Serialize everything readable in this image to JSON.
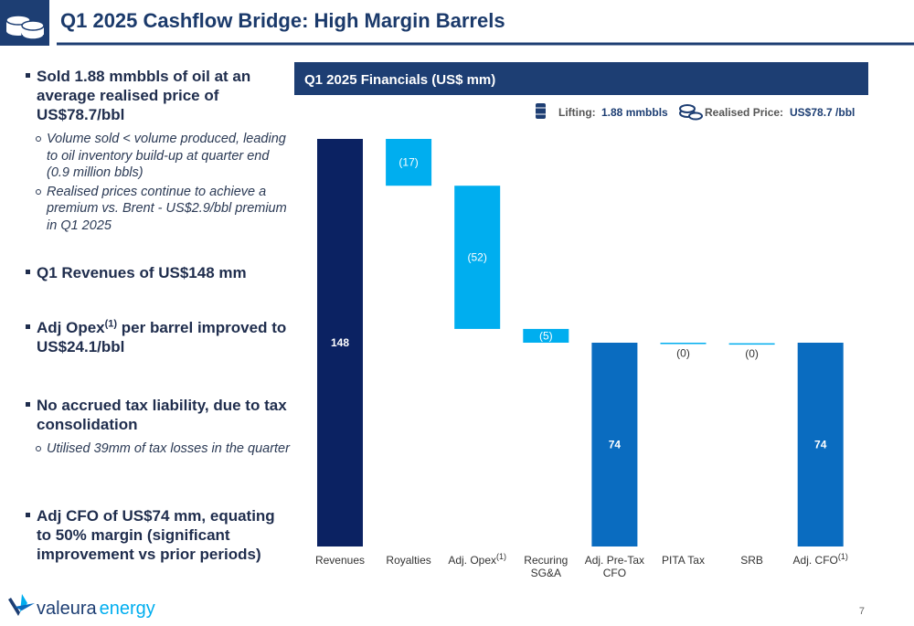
{
  "header": {
    "title": "Q1 2025 Cashflow Bridge: High Margin Barrels"
  },
  "bullets": [
    {
      "text": "Sold 1.88 mmbbls of oil at an average realised price of US$78.7/bbl",
      "subs": [
        "Volume sold <  volume produced, leading to oil inventory build-up at quarter end (0.9 million bbls)",
        "Realised prices continue to achieve a premium vs. Brent -  US$2.9/bbl premium in Q1 2025"
      ]
    },
    {
      "text": "Q1 Revenues of US$148 mm"
    },
    {
      "text": "Adj Opex",
      "sup": "(1)",
      "after": " per barrel improved to US$24.1/bbl"
    },
    {
      "text": "No accrued  tax liability, due to tax consolidation",
      "subs": [
        "Utilised 39mm of tax losses in the quarter"
      ]
    },
    {
      "text": "Adj CFO of US$74 mm,  equating to 50% margin (significant improvement vs prior periods)"
    }
  ],
  "chart_data": {
    "type": "waterfall",
    "title": "Q1 2025 Financials (US$ mm)",
    "legend": {
      "lifting_label": "Lifting:",
      "lifting_value": "1.88 mmbbls",
      "price_label": "Realised Price:",
      "price_value": "US$78.7 /bbl"
    },
    "categories": [
      "Revenues",
      "Royalties",
      "Adj. Opex",
      "Recuring SG&A",
      "Adj. Pre-Tax CFO",
      "PITA Tax",
      "SRB",
      "Adj. CFO"
    ],
    "category_notes": [
      null,
      null,
      "(1)",
      null,
      null,
      null,
      null,
      "(1)"
    ],
    "values": [
      148,
      -17,
      -52,
      -5,
      74,
      -0.2,
      -0.2,
      74
    ],
    "value_labels": [
      "148",
      "(17)",
      "(52)",
      "(5)",
      "74",
      "(0)",
      "(0)",
      "74"
    ],
    "kinds": [
      "total",
      "delta",
      "delta",
      "delta",
      "total",
      "delta",
      "delta",
      "total"
    ],
    "colors": [
      "#0b2262",
      "#00aeef",
      "#00aeef",
      "#00aeef",
      "#0a6cc0",
      "#00aeef",
      "#00aeef",
      "#0a6cc0"
    ]
  },
  "footer": {
    "logo_a": "valeura",
    "logo_b": "energy",
    "page": "7"
  }
}
